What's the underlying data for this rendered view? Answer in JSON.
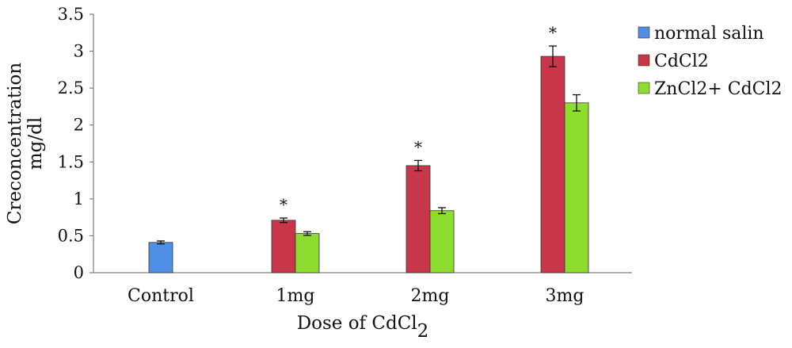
{
  "chart_data": {
    "type": "bar",
    "categories": [
      "Control",
      "1mg",
      "2mg",
      "3mg"
    ],
    "series": [
      {
        "name": "normal salin",
        "color": "#4f8fe6",
        "values": [
          0.41,
          null,
          null,
          null
        ],
        "errors": [
          0.02,
          null,
          null,
          null
        ]
      },
      {
        "name": "CdCl2",
        "color": "#c8364a",
        "values": [
          null,
          0.71,
          1.45,
          2.93
        ],
        "errors": [
          null,
          0.03,
          0.07,
          0.14
        ]
      },
      {
        "name": "ZnCl2+ CdCl2",
        "color": "#8fdc30",
        "values": [
          null,
          0.53,
          0.84,
          2.3
        ],
        "errors": [
          null,
          0.025,
          0.04,
          0.11
        ]
      }
    ],
    "significance_markers": [
      {
        "category": "1mg",
        "series": "CdCl2",
        "text": "*"
      },
      {
        "category": "2mg",
        "series": "CdCl2",
        "text": "*"
      },
      {
        "category": "3mg",
        "series": "CdCl2",
        "text": "*"
      }
    ],
    "ylim": [
      0,
      3.5
    ],
    "yticks": [
      "0",
      "0.5",
      "1",
      "1.5",
      "2",
      "2.5",
      "3",
      "3.5"
    ],
    "ytick_values": [
      0,
      0.5,
      1,
      1.5,
      2,
      2.5,
      3,
      3.5
    ],
    "xlabel": "Dose of CdCl",
    "xlabel_subscript": "2",
    "ylabel_line1": "Creconcentration",
    "ylabel_line2": "mg/dl",
    "legend_position": "right",
    "grid": false
  }
}
